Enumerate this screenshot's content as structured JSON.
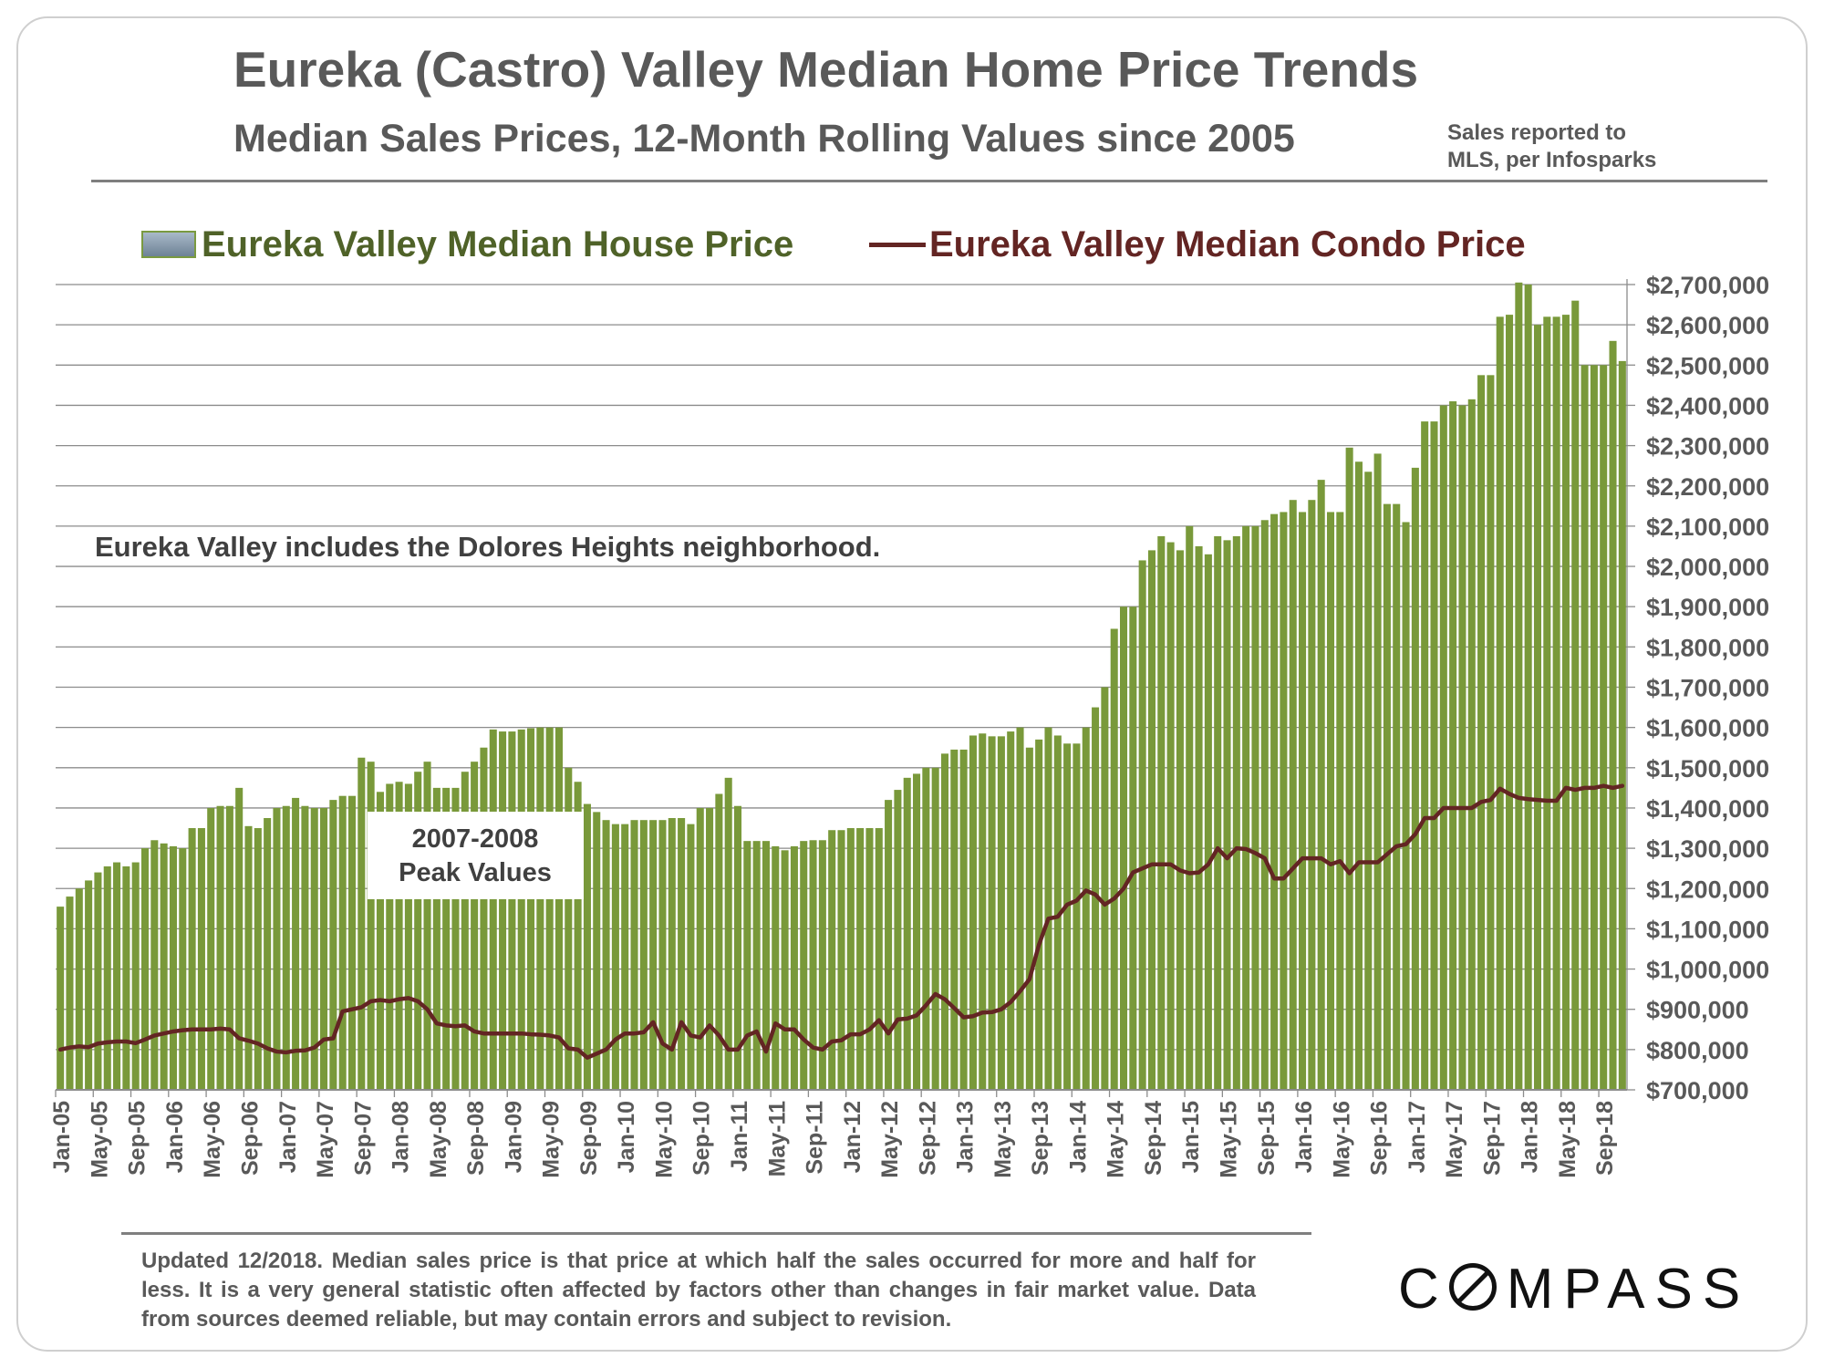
{
  "header": {
    "title": "Eureka (Castro) Valley Median Home Price Trends",
    "subtitle": "Median Sales Prices, 12-Month Rolling Values since 2005",
    "source_line1": "Sales reported to",
    "source_line2": "MLS, per Infosparks"
  },
  "footer": {
    "note": "Updated 12/2018. Median sales price is that price at which half the sales occurred for more and half for less. It is a very general statistic often affected by factors other than changes in fair market value. Data from sources deemed reliable, but may contain errors and subject to revision.",
    "logo": "COMPASS"
  },
  "colors": {
    "house_bar": "#79993a",
    "condo_line": "#632523",
    "grid": "#8c8c8c",
    "text": "#595959"
  },
  "chart_data": {
    "type": "bar+line",
    "title": "Eureka (Castro) Valley Median Home Price Trends",
    "subtitle": "Median Sales Prices, 12-Month Rolling Values since 2005",
    "y_axis_side": "right",
    "ylim": [
      700000,
      2700000
    ],
    "y_ticks": [
      700000,
      800000,
      900000,
      1000000,
      1100000,
      1200000,
      1300000,
      1400000,
      1500000,
      1600000,
      1700000,
      1800000,
      1900000,
      2000000,
      2100000,
      2200000,
      2300000,
      2400000,
      2500000,
      2600000,
      2700000
    ],
    "y_tick_labels": [
      "$700,000",
      "$800,000",
      "$900,000",
      "$1,000,000",
      "$1,100,000",
      "$1,200,000",
      "$1,300,000",
      "$1,400,000",
      "$1,500,000",
      "$1,600,000",
      "$1,700,000",
      "$1,800,000",
      "$1,900,000",
      "$2,000,000",
      "$2,100,000",
      "$2,200,000",
      "$2,300,000",
      "$2,400,000",
      "$2,500,000",
      "$2,600,000",
      "$2,700,000"
    ],
    "x_start": "Jan-05",
    "x_tick_labels": [
      "Jan-05",
      "May-05",
      "Sep-05",
      "Jan-06",
      "May-06",
      "Sep-06",
      "Jan-07",
      "May-07",
      "Sep-07",
      "Jan-08",
      "May-08",
      "Sep-08",
      "Jan-09",
      "May-09",
      "Sep-09",
      "Jan-10",
      "May-10",
      "Sep-10",
      "Jan-11",
      "May-11",
      "Sep-11",
      "Jan-12",
      "May-12",
      "Sep-12",
      "Jan-13",
      "May-13",
      "Sep-13",
      "Jan-14",
      "May-14",
      "Sep-14",
      "Jan-15",
      "May-15",
      "Sep-15",
      "Jan-16",
      "May-16",
      "Sep-16",
      "Jan-17",
      "May-17",
      "Sep-17",
      "Jan-18",
      "May-18",
      "Sep-18"
    ],
    "grid": true,
    "legend_position": "top",
    "series": [
      {
        "name": "Eureka Valley Median House Price",
        "type": "bar",
        "values": [
          1155000,
          1180000,
          1200000,
          1220000,
          1240000,
          1255000,
          1265000,
          1255000,
          1265000,
          1300000,
          1320000,
          1312000,
          1305000,
          1300000,
          1350000,
          1350000,
          1400000,
          1405000,
          1405000,
          1450000,
          1355000,
          1350000,
          1375000,
          1400000,
          1405000,
          1425000,
          1405000,
          1400000,
          1400000,
          1420000,
          1430000,
          1430000,
          1525000,
          1515000,
          1440000,
          1460000,
          1465000,
          1460000,
          1490000,
          1515000,
          1450000,
          1450000,
          1450000,
          1490000,
          1515000,
          1550000,
          1595000,
          1590000,
          1590000,
          1595000,
          1598000,
          1600000,
          1600000,
          1600000,
          1500000,
          1465000,
          1410000,
          1390000,
          1370000,
          1360000,
          1360000,
          1370000,
          1370000,
          1370000,
          1370000,
          1375000,
          1375000,
          1360000,
          1400000,
          1400000,
          1435000,
          1475000,
          1405000,
          1318000,
          1318000,
          1318000,
          1305000,
          1295000,
          1305000,
          1318000,
          1320000,
          1320000,
          1345000,
          1345000,
          1350000,
          1350000,
          1350000,
          1350000,
          1420000,
          1445000,
          1475000,
          1485000,
          1500000,
          1500000,
          1535000,
          1545000,
          1545000,
          1580000,
          1585000,
          1578000,
          1578000,
          1590000,
          1600000,
          1550000,
          1570000,
          1600000,
          1580000,
          1560000,
          1560000,
          1600000,
          1650000,
          1700000,
          1845000,
          1900000,
          1900000,
          2015000,
          2040000,
          2075000,
          2060000,
          2040000,
          2100000,
          2050000,
          2030000,
          2075000,
          2065000,
          2075000,
          2100000,
          2100000,
          2115000,
          2130000,
          2135000,
          2165000,
          2135000,
          2165000,
          2215000,
          2135000,
          2135000,
          2295000,
          2260000,
          2235000,
          2280000,
          2155000,
          2155000,
          2110000,
          2245000,
          2360000,
          2360000,
          2400000,
          2410000,
          2400000,
          2415000,
          2475000,
          2475000,
          2620000,
          2625000,
          2705000,
          2700000,
          2600000,
          2620000,
          2620000,
          2625000,
          2660000,
          2500000,
          2500000,
          2500000,
          2560000,
          2510000
        ]
      },
      {
        "name": "Eureka Valley Median Condo Price",
        "type": "line",
        "values": [
          800000,
          805000,
          808000,
          806000,
          815000,
          818000,
          820000,
          820000,
          816000,
          825000,
          835000,
          840000,
          845000,
          848000,
          850000,
          850000,
          850000,
          852000,
          850000,
          828000,
          822000,
          815000,
          803000,
          795000,
          793000,
          797000,
          798000,
          805000,
          825000,
          828000,
          895000,
          900000,
          905000,
          920000,
          923000,
          920000,
          925000,
          928000,
          920000,
          900000,
          865000,
          860000,
          858000,
          860000,
          845000,
          840000,
          840000,
          840000,
          840000,
          840000,
          838000,
          837000,
          835000,
          830000,
          803000,
          800000,
          780000,
          790000,
          800000,
          825000,
          840000,
          840000,
          843000,
          868000,
          815000,
          800000,
          868000,
          835000,
          830000,
          860000,
          835000,
          800000,
          800000,
          835000,
          845000,
          795000,
          865000,
          850000,
          850000,
          825000,
          805000,
          800000,
          820000,
          823000,
          838000,
          838000,
          850000,
          873000,
          840000,
          875000,
          877000,
          885000,
          910000,
          938000,
          925000,
          903000,
          880000,
          883000,
          892000,
          893000,
          900000,
          918000,
          945000,
          975000,
          1060000,
          1125000,
          1130000,
          1160000,
          1170000,
          1195000,
          1185000,
          1160000,
          1175000,
          1200000,
          1240000,
          1250000,
          1260000,
          1260000,
          1260000,
          1245000,
          1238000,
          1240000,
          1260000,
          1300000,
          1275000,
          1300000,
          1298000,
          1288000,
          1275000,
          1225000,
          1225000,
          1250000,
          1275000,
          1275000,
          1275000,
          1260000,
          1268000,
          1238000,
          1265000,
          1265000,
          1265000,
          1285000,
          1305000,
          1310000,
          1335000,
          1375000,
          1375000,
          1400000,
          1400000,
          1400000,
          1400000,
          1415000,
          1420000,
          1448000,
          1435000,
          1425000,
          1422000,
          1420000,
          1418000,
          1418000,
          1450000,
          1445000,
          1450000,
          1450000,
          1455000,
          1450000,
          1455000
        ]
      }
    ],
    "annotations": {
      "peak_line1": "2007-2008",
      "peak_line2": "Peak Values",
      "note": "Eureka Valley includes the Dolores Heights neighborhood."
    }
  }
}
